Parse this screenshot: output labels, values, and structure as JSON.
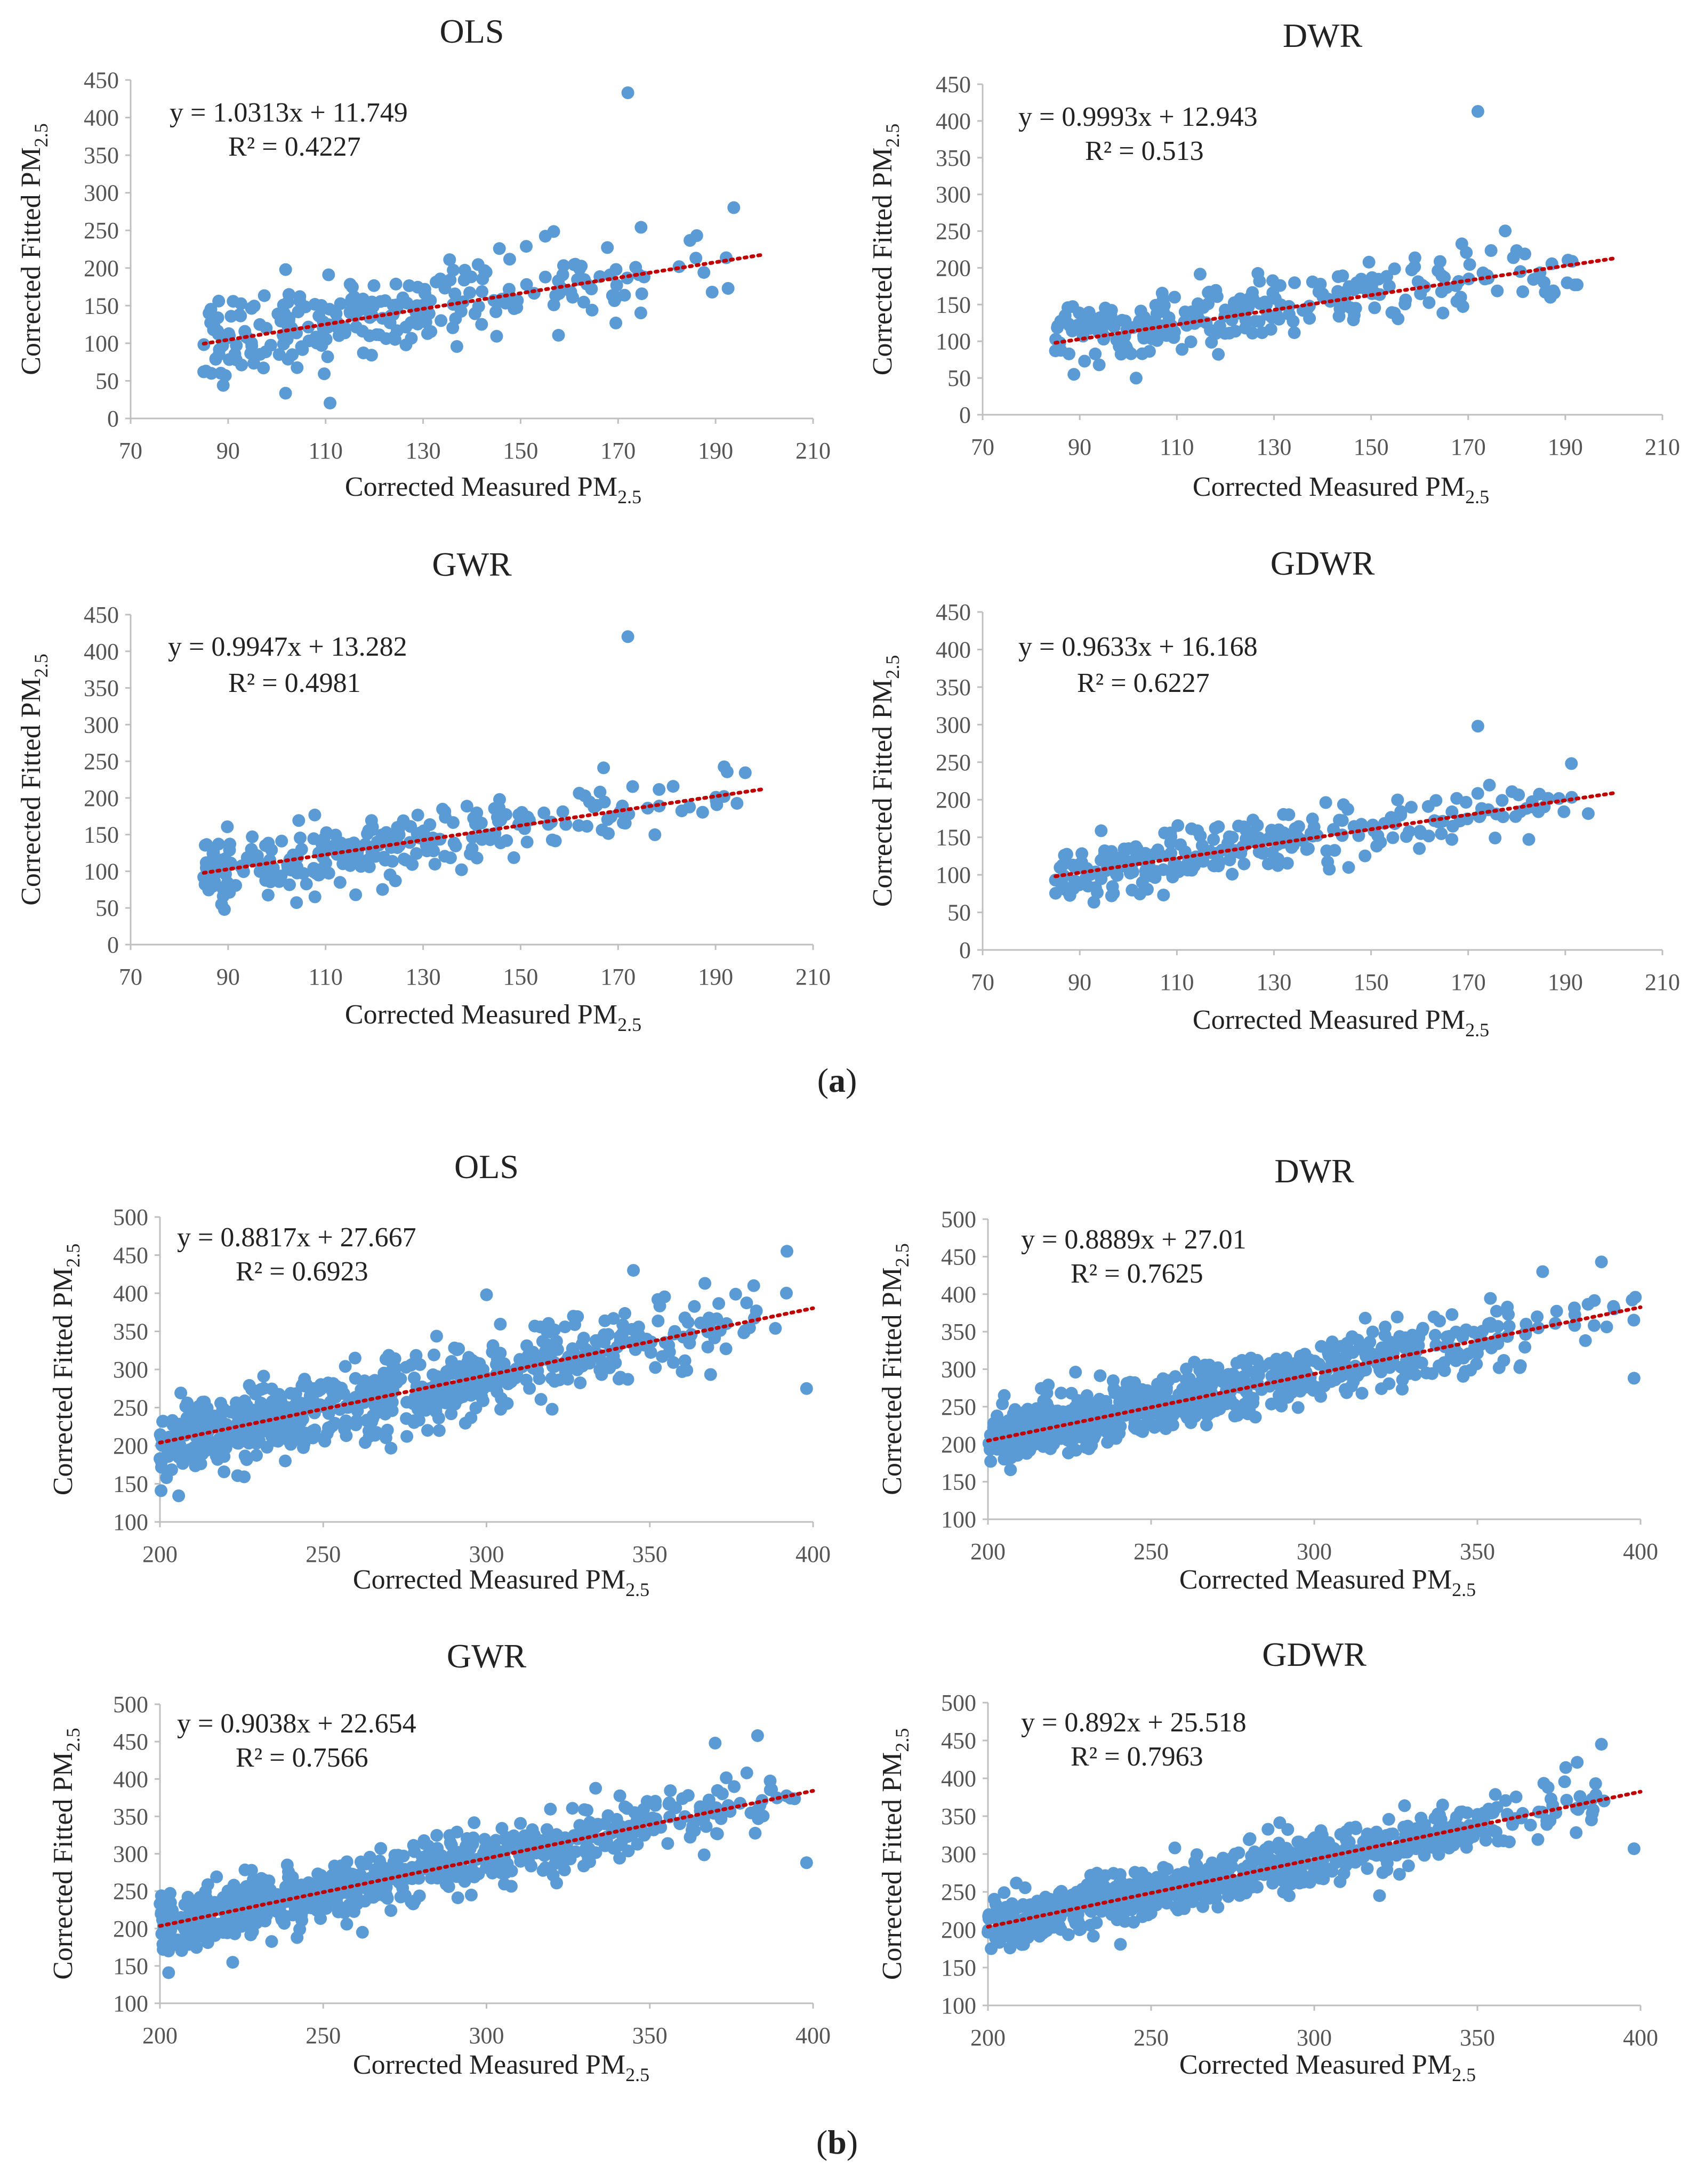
{
  "figure": {
    "part_labels": [
      {
        "text_open": "(",
        "text_bold": "a",
        "text_close": ")"
      },
      {
        "text_open": "(",
        "text_bold": "b",
        "text_close": ")"
      }
    ]
  },
  "colors": {
    "point": "#5b9bd5",
    "trendline": "#c00000",
    "axis": "#bfbfbf"
  },
  "chart_data": [
    {
      "type": "scatter",
      "group": "a",
      "title": "OLS",
      "xlabel": "Corrected Measured PM",
      "xlabel_sub": "2.5",
      "ylabel": "Corrected Fitted PM",
      "ylabel_sub": "2.5",
      "xlim": [
        70,
        210
      ],
      "ylim": [
        0,
        450
      ],
      "xticks": [
        "70",
        "90",
        "110",
        "130",
        "150",
        "170",
        "190",
        "210"
      ],
      "yticks": [
        "0",
        "50",
        "100",
        "150",
        "200",
        "250",
        "300",
        "350",
        "400",
        "450"
      ],
      "trendline": {
        "slope": 1.0313,
        "intercept": 11.749
      },
      "equation": "y = 1.0313x + 11.749",
      "r2_label": "R² = 0.4227",
      "x_range_points": [
        85,
        200
      ],
      "n_points": 260,
      "noise_sd": 28,
      "seed": 11,
      "notable_points": [
        [
          172,
          433
        ],
        [
          85,
          62
        ],
        [
          89,
          44
        ],
        [
          87,
          118
        ]
      ]
    },
    {
      "type": "scatter",
      "group": "a",
      "title": "DWR",
      "xlabel": "Corrected Measured PM",
      "xlabel_sub": "2.5",
      "ylabel": "Corrected Fitted PM",
      "ylabel_sub": "2.5",
      "xlim": [
        70,
        210
      ],
      "ylim": [
        0,
        450
      ],
      "xticks": [
        "70",
        "90",
        "110",
        "130",
        "150",
        "170",
        "190",
        "210"
      ],
      "yticks": [
        "0",
        "50",
        "100",
        "150",
        "200",
        "250",
        "300",
        "350",
        "400",
        "450"
      ],
      "trendline": {
        "slope": 0.9993,
        "intercept": 12.943
      },
      "equation": "y = 0.9993x + 12.943",
      "r2_label": "R² = 0.513",
      "x_range_points": [
        85,
        200
      ],
      "n_points": 260,
      "noise_sd": 22,
      "seed": 23,
      "notable_points": [
        [
          172,
          413
        ],
        [
          85,
          87
        ],
        [
          87,
          135
        ]
      ]
    },
    {
      "type": "scatter",
      "group": "a",
      "title": "GWR",
      "xlabel": "Corrected Measured PM",
      "xlabel_sub": "2.5",
      "ylabel": "Corrected Fitted PM",
      "ylabel_sub": "2.5",
      "xlim": [
        70,
        210
      ],
      "ylim": [
        0,
        450
      ],
      "xticks": [
        "70",
        "90",
        "110",
        "130",
        "150",
        "170",
        "190",
        "210"
      ],
      "yticks": [
        "0",
        "50",
        "100",
        "150",
        "200",
        "250",
        "300",
        "350",
        "400",
        "450"
      ],
      "trendline": {
        "slope": 0.9947,
        "intercept": 13.282
      },
      "equation": "y = 0.9947x + 13.282",
      "r2_label": "R² = 0.4981",
      "x_range_points": [
        85,
        200
      ],
      "n_points": 260,
      "noise_sd": 22,
      "seed": 37,
      "notable_points": [
        [
          172,
          420
        ],
        [
          85,
          92
        ],
        [
          87,
          126
        ],
        [
          89,
          66
        ]
      ]
    },
    {
      "type": "scatter",
      "group": "a",
      "title": "GDWR",
      "xlabel": "Corrected Measured PM",
      "xlabel_sub": "2.5",
      "ylabel": "Corrected Fitted PM",
      "ylabel_sub": "2.5",
      "xlim": [
        70,
        210
      ],
      "ylim": [
        0,
        450
      ],
      "xticks": [
        "70",
        "90",
        "110",
        "130",
        "150",
        "170",
        "190",
        "210"
      ],
      "yticks": [
        "0",
        "50",
        "100",
        "150",
        "200",
        "250",
        "300",
        "350",
        "400",
        "450"
      ],
      "trendline": {
        "slope": 0.9633,
        "intercept": 16.168
      },
      "equation": "y = 0.9633x + 16.168",
      "r2_label": "R² = 0.6227",
      "x_range_points": [
        85,
        200
      ],
      "n_points": 260,
      "noise_sd": 18,
      "seed": 51,
      "notable_points": [
        [
          172,
          298
        ],
        [
          85,
          93
        ],
        [
          87,
          125
        ],
        [
          89,
          92
        ]
      ]
    },
    {
      "type": "scatter",
      "group": "b",
      "title": "OLS",
      "xlabel": "Corrected Measured PM",
      "xlabel_sub": "2.5",
      "ylabel": "Corrected Fitted PM",
      "ylabel_sub": "2.5",
      "xlim": [
        200,
        400
      ],
      "ylim": [
        100,
        500
      ],
      "xticks": [
        "200",
        "250",
        "300",
        "350",
        "400"
      ],
      "yticks": [
        "100",
        "150",
        "200",
        "250",
        "300",
        "350",
        "400",
        "450",
        "500"
      ],
      "trendline": {
        "slope": 0.8817,
        "intercept": 27.667
      },
      "equation": "y = 0.8817x + 27.667",
      "r2_label": "R² = 0.6923",
      "x_range_points": [
        200,
        400
      ],
      "n_points": 700,
      "noise_sd": 24,
      "seed": 61,
      "notable_points": [
        [
          200,
          183
        ],
        [
          202,
          158
        ],
        [
          345,
          430
        ],
        [
          398,
          275
        ],
        [
          392,
          455
        ],
        [
          300,
          398
        ]
      ]
    },
    {
      "type": "scatter",
      "group": "b",
      "title": "DWR",
      "xlabel": "Corrected Measured PM",
      "xlabel_sub": "2.5",
      "ylabel": "Corrected Fitted PM",
      "ylabel_sub": "2.5",
      "xlim": [
        200,
        400
      ],
      "ylim": [
        100,
        500
      ],
      "xticks": [
        "200",
        "250",
        "300",
        "350",
        "400"
      ],
      "yticks": [
        "100",
        "150",
        "200",
        "250",
        "300",
        "350",
        "400",
        "450",
        "500"
      ],
      "trendline": {
        "slope": 0.8889,
        "intercept": 27.01
      },
      "equation": "y = 0.8889x + 27.01",
      "r2_label": "R² = 0.7625",
      "x_range_points": [
        200,
        400
      ],
      "n_points": 700,
      "noise_sd": 20,
      "seed": 73,
      "notable_points": [
        [
          388,
          443
        ],
        [
          398,
          288
        ],
        [
          205,
          265
        ],
        [
          370,
          430
        ]
      ]
    },
    {
      "type": "scatter",
      "group": "b",
      "title": "GWR",
      "xlabel": "Corrected Measured PM",
      "xlabel_sub": "2.5",
      "ylabel": "Corrected Fitted PM",
      "ylabel_sub": "2.5",
      "xlim": [
        200,
        400
      ],
      "ylim": [
        100,
        500
      ],
      "xticks": [
        "200",
        "250",
        "300",
        "350",
        "400"
      ],
      "yticks": [
        "100",
        "150",
        "200",
        "250",
        "300",
        "350",
        "400",
        "450",
        "500"
      ],
      "trendline": {
        "slope": 0.9038,
        "intercept": 22.654
      },
      "equation": "y = 0.9038x + 22.654",
      "r2_label": "R² = 0.7566",
      "x_range_points": [
        200,
        400
      ],
      "n_points": 700,
      "noise_sd": 20,
      "seed": 89,
      "notable_points": [
        [
          383,
          458
        ],
        [
          370,
          448
        ],
        [
          398,
          288
        ],
        [
          201,
          172
        ],
        [
          262,
          195
        ]
      ]
    },
    {
      "type": "scatter",
      "group": "b",
      "title": "GDWR",
      "xlabel": "Corrected Measured PM",
      "xlabel_sub": "2.5",
      "ylabel": "Corrected Fitted PM",
      "ylabel_sub": "2.5",
      "xlim": [
        200,
        400
      ],
      "ylim": [
        100,
        500
      ],
      "xticks": [
        "200",
        "250",
        "300",
        "350",
        "400"
      ],
      "yticks": [
        "100",
        "150",
        "200",
        "250",
        "300",
        "350",
        "400",
        "450",
        "500"
      ],
      "trendline": {
        "slope": 0.892,
        "intercept": 25.518
      },
      "equation": "y = 0.892x + 25.518",
      "r2_label": "R² = 0.7963",
      "x_range_points": [
        200,
        400
      ],
      "n_points": 700,
      "noise_sd": 17,
      "seed": 97,
      "notable_points": [
        [
          388,
          445
        ],
        [
          398,
          307
        ],
        [
          320,
          245
        ],
        [
          201,
          175
        ]
      ]
    }
  ]
}
